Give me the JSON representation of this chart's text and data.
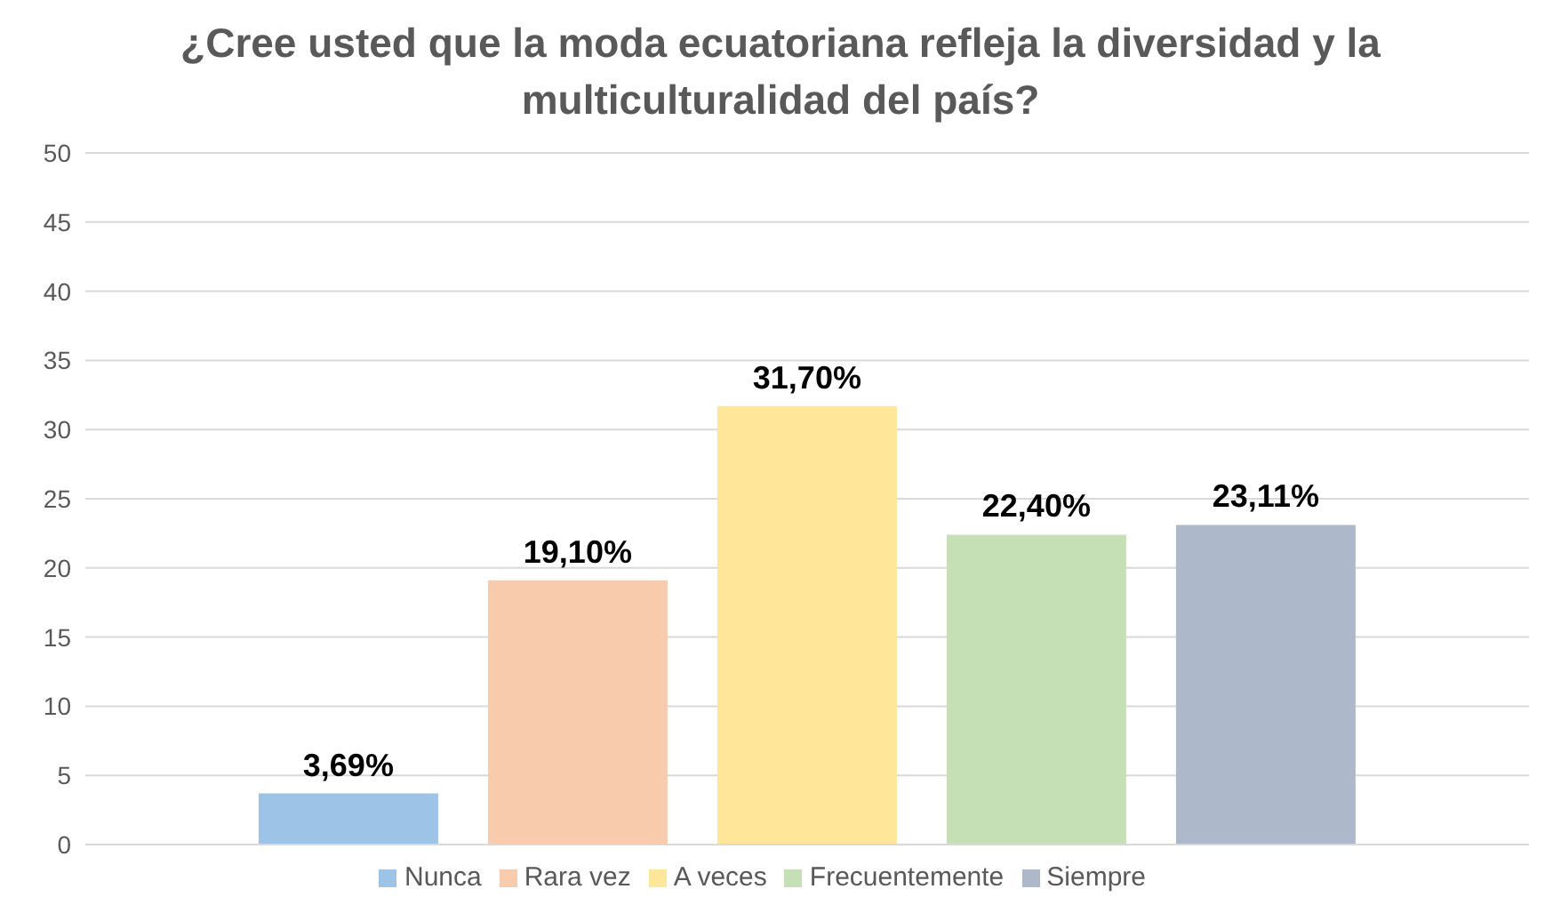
{
  "chart_data": {
    "type": "bar",
    "title": "¿Cree usted que la moda ecuatoriana refleja la diversidad y la multiculturalidad del país?",
    "categories": [
      null
    ],
    "series": [
      {
        "name": "Nunca",
        "color": "#9dc3e6",
        "values": [
          3.69
        ],
        "value_labels": [
          "3,69%"
        ]
      },
      {
        "name": "Rara vez",
        "color": "#f8cbad",
        "values": [
          19.1
        ],
        "value_labels": [
          "19,10%"
        ]
      },
      {
        "name": "A veces",
        "color": "#ffe699",
        "values": [
          31.7
        ],
        "value_labels": [
          "31,70%"
        ]
      },
      {
        "name": "Frecuentemente",
        "color": "#c5e0b4",
        "values": [
          22.4
        ],
        "value_labels": [
          "22,40%"
        ]
      },
      {
        "name": "Siempre",
        "color": "#adb9ca",
        "values": [
          23.11
        ],
        "value_labels": [
          "23,11%"
        ]
      }
    ],
    "ylim": [
      0,
      50
    ],
    "yticks": [
      0,
      5,
      10,
      15,
      20,
      25,
      30,
      35,
      40,
      45,
      50
    ],
    "grid": "y",
    "legend": "bottom"
  }
}
